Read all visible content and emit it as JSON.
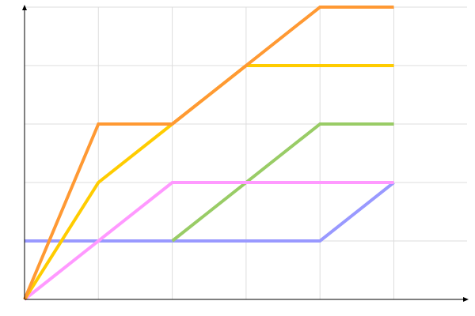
{
  "chart_data": {
    "type": "line",
    "title": "",
    "xlabel": "",
    "ylabel": "",
    "xlim": [
      0,
      6
    ],
    "ylim": [
      0,
      5
    ],
    "grid": true,
    "series": [
      {
        "color": "#9999ff",
        "x": [
          0,
          4,
          5
        ],
        "y": [
          1,
          1,
          2
        ]
      },
      {
        "color": "#99cc66",
        "x": [
          2,
          4,
          5
        ],
        "y": [
          1,
          3,
          3
        ]
      },
      {
        "color": "#ff99ff",
        "x": [
          0,
          2,
          5
        ],
        "y": [
          0,
          2,
          2
        ]
      },
      {
        "color": "#ffcc00",
        "x": [
          0,
          1,
          2,
          3,
          5
        ],
        "y": [
          0,
          2,
          3,
          4,
          4
        ]
      },
      {
        "color": "#ff9933",
        "x": [
          0,
          1,
          2,
          4,
          5
        ],
        "y": [
          0,
          3,
          3,
          5,
          5
        ]
      }
    ]
  }
}
